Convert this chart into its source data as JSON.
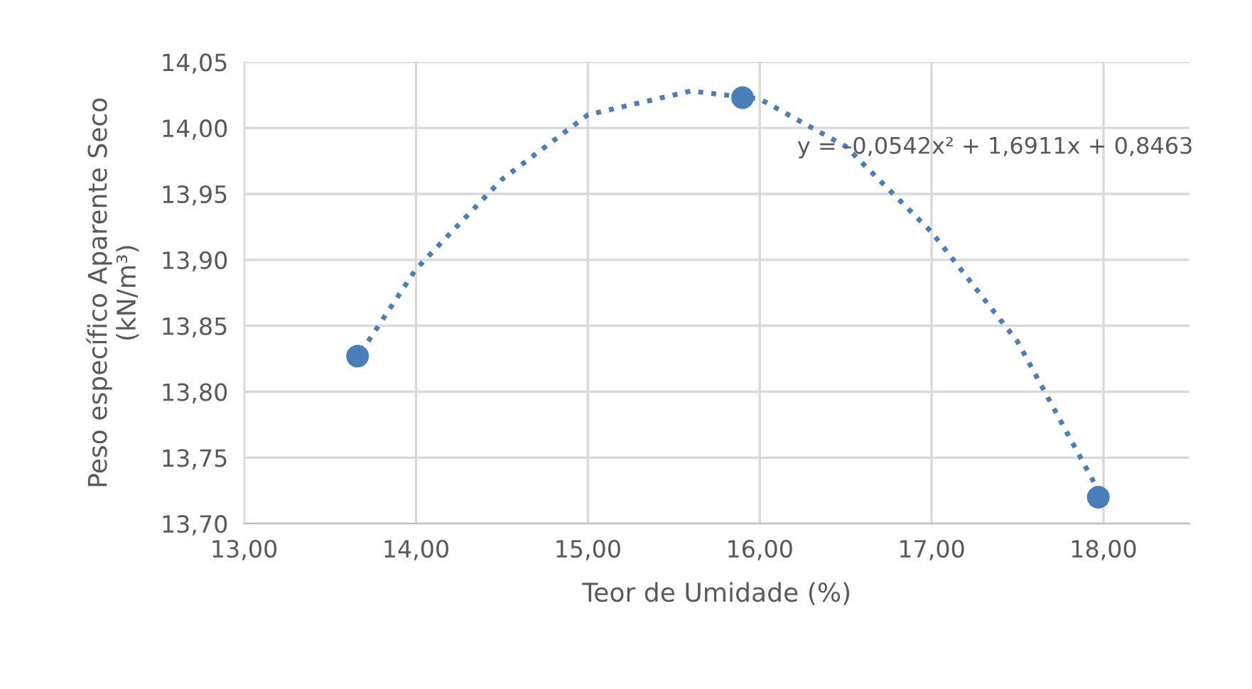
{
  "chart_data": {
    "type": "scatter",
    "xlabel": "Teor de Umidade (%)",
    "ylabel": "Peso específico Aparente Seco\n(kN/m³)",
    "series": [
      {
        "color": "#4a7ebb",
        "marker": "circle",
        "x": [
          13.66,
          15.9,
          17.97
        ],
        "values": [
          13.827,
          14.023,
          13.72
        ]
      },
      {
        "type": "line",
        "color": "#4a7ebb",
        "line_style": "dotted",
        "marker": "none",
        "x": [
          13.68,
          14.0,
          14.5,
          15.0,
          15.6,
          16.0,
          16.5,
          17.0,
          17.5,
          17.95
        ],
        "values": [
          13.83,
          13.893,
          13.961,
          14.01,
          14.028,
          14.022,
          13.986,
          13.921,
          13.838,
          13.73
        ]
      }
    ],
    "annotations": [
      "y = -0,0542x² + 1,6911x + 0,8463"
    ],
    "xlim": [
      13,
      18.5
    ],
    "xticks": [
      {
        "value": 13,
        "label": "13,00"
      },
      {
        "value": 14,
        "label": "14,00"
      },
      {
        "value": 15,
        "label": "15,00"
      },
      {
        "value": 16,
        "label": "16,00"
      },
      {
        "value": 17,
        "label": "17,00"
      },
      {
        "value": 18,
        "label": "18,00"
      }
    ],
    "ylim": [
      13.7,
      14.05
    ],
    "yticks": [
      {
        "value": 13.7,
        "label": "13,70"
      },
      {
        "value": 13.75,
        "label": "13,75"
      },
      {
        "value": 13.8,
        "label": "13,80"
      },
      {
        "value": 13.85,
        "label": "13,85"
      },
      {
        "value": 13.9,
        "label": "13,90"
      },
      {
        "value": 13.95,
        "label": "13,95"
      },
      {
        "value": 14.0,
        "label": "14,00"
      },
      {
        "value": 14.05,
        "label": "14,05"
      }
    ],
    "grid": true
  }
}
